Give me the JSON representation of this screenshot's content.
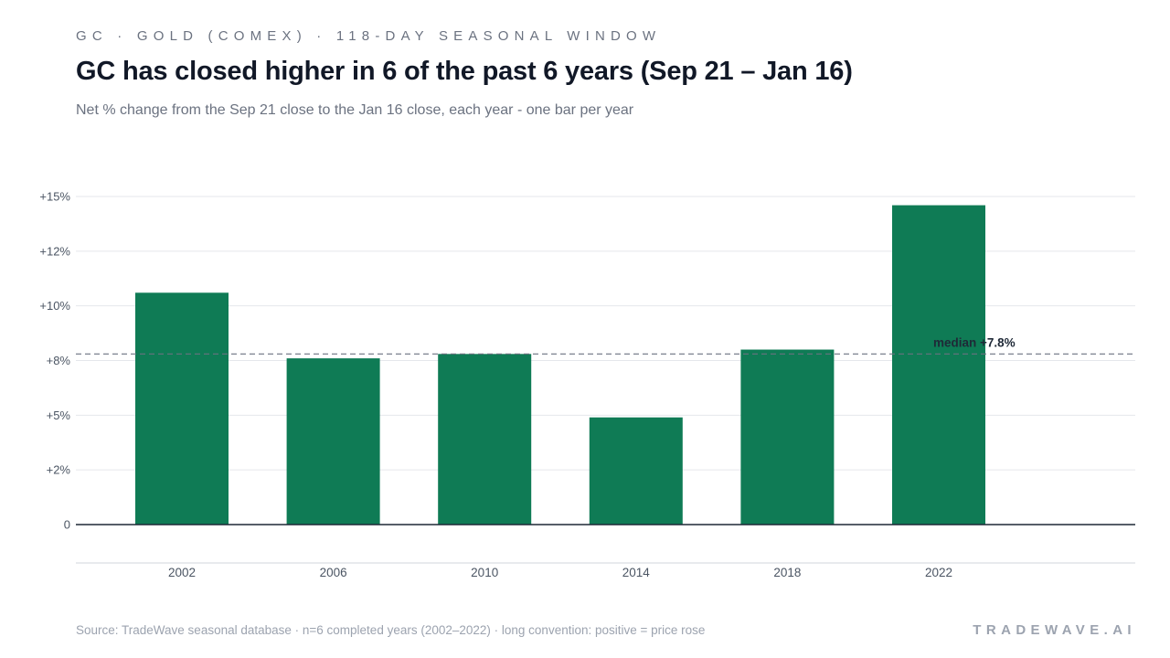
{
  "header": {
    "kicker": "GC · GOLD (COMEX) · 118-DAY SEASONAL WINDOW",
    "title": "GC has closed higher in 6 of the past 6 years (Sep 21 – Jan 16)",
    "subtitle": "Net % change from the Sep 21 close to the Jan 16 close, each year - one bar per year"
  },
  "footer": {
    "source": "Source: TradeWave seasonal database · n=6 completed years (2002–2022) · long convention: positive = price rose",
    "brand": "TRADEWAVE.AI"
  },
  "colors": {
    "bar": "#0f7b55",
    "grid": "#e5e7eb",
    "baseline": "#1f2937",
    "median": "#6b7280",
    "tick_text": "#4b5563"
  },
  "chart_data": {
    "type": "bar",
    "categories": [
      "2002",
      "2006",
      "2010",
      "2014",
      "2018",
      "2022"
    ],
    "values": [
      10.6,
      7.6,
      7.8,
      4.9,
      8.0,
      14.6
    ],
    "ylim": [
      0,
      15
    ],
    "yticks": [
      {
        "value": 0,
        "label": "0"
      },
      {
        "value": 2.5,
        "label": "+2%"
      },
      {
        "value": 5,
        "label": "+5%"
      },
      {
        "value": 7.5,
        "label": "+8%"
      },
      {
        "value": 10,
        "label": "+10%"
      },
      {
        "value": 12.5,
        "label": "+12%"
      },
      {
        "value": 15,
        "label": "+15%"
      }
    ],
    "median": {
      "value": 7.8,
      "label": "median +7.8%"
    },
    "title": "",
    "xlabel": "",
    "ylabel": "",
    "grid": true,
    "legend": "none"
  }
}
